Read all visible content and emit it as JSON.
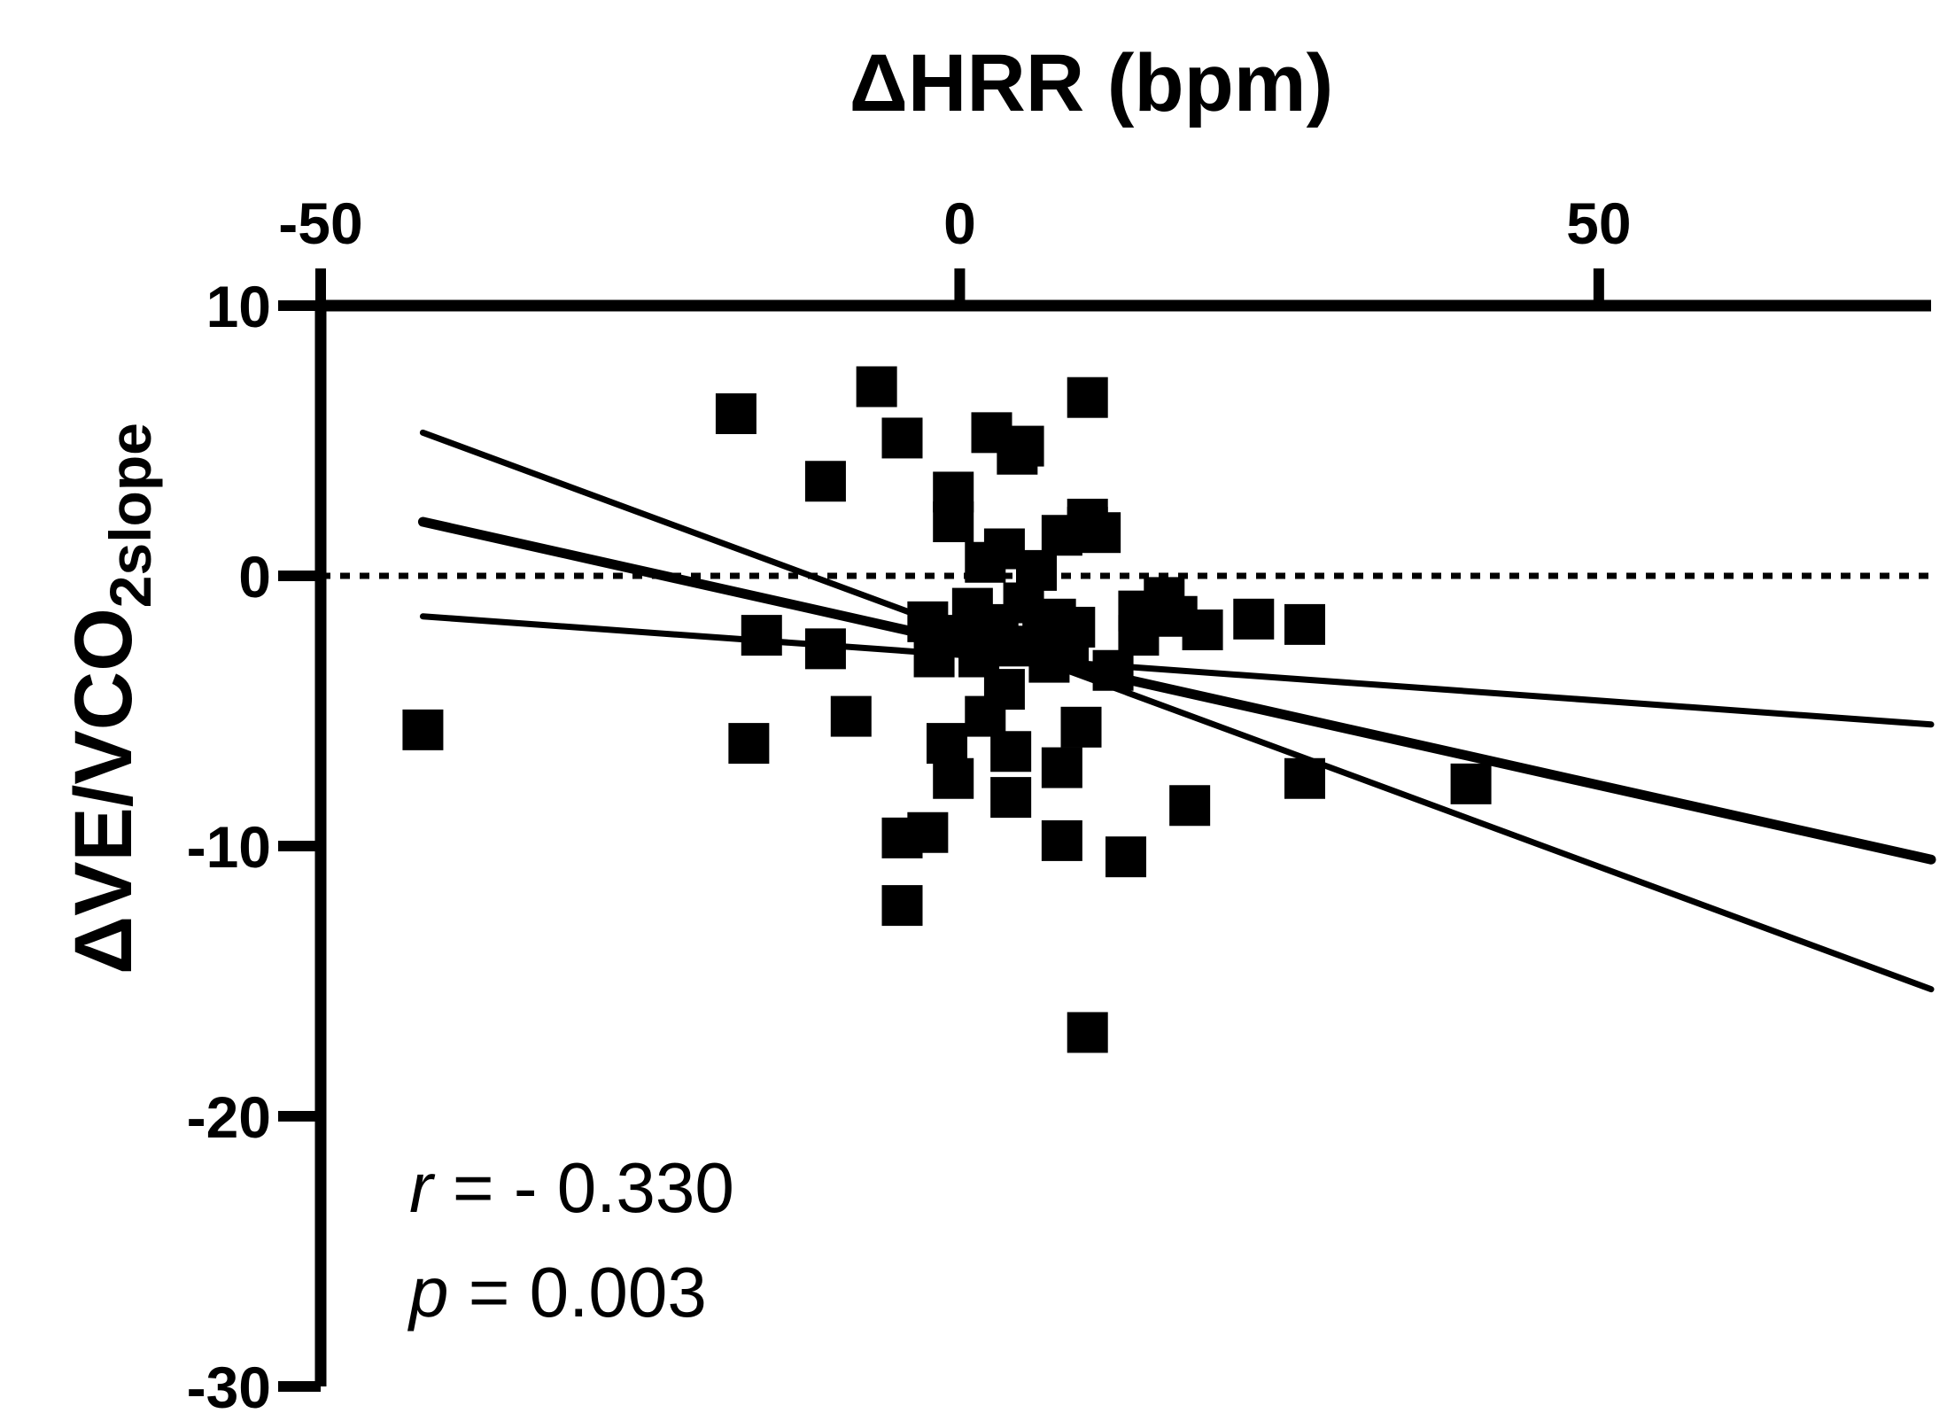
{
  "chart_data": {
    "type": "scatter",
    "title": "",
    "xlabel": "ΔHRR (bpm)",
    "ylabel": {
      "main": "ΔVE/VCO",
      "subscript": "2slope"
    },
    "xlim": [
      -50,
      76
    ],
    "ylim": [
      -30,
      10
    ],
    "x_ticks": [
      -50,
      0,
      50
    ],
    "y_ticks": [
      10,
      0,
      -10,
      -20,
      -30
    ],
    "x_tick_labels": [
      "-50",
      "0",
      "50"
    ],
    "y_tick_labels": [
      "10",
      "0",
      "-10",
      "-20",
      "-30"
    ],
    "x_axis_position": "top",
    "grid": false,
    "marker": "square",
    "color": "#000000",
    "reference_line": {
      "y": 0,
      "style": "dotted"
    },
    "regression": {
      "fit": {
        "x": [
          -42,
          76
        ],
        "y": [
          2.0,
          -10.5
        ]
      },
      "upper": {
        "x": [
          -42,
          76
        ],
        "y": [
          5.3,
          -15.3
        ]
      },
      "lower": {
        "x": [
          -42,
          76
        ],
        "y": [
          -1.5,
          -5.5
        ]
      }
    },
    "annotation": {
      "r_symbol": "r",
      "r_value": "= - 0.330",
      "p_symbol": "p",
      "p_value": "= 0.003"
    },
    "points": [
      {
        "x": -42,
        "y": -5.7
      },
      {
        "x": -17.5,
        "y": 6.0
      },
      {
        "x": -16.5,
        "y": -6.2
      },
      {
        "x": -15.5,
        "y": -2.2
      },
      {
        "x": -10.5,
        "y": 3.5
      },
      {
        "x": -10.5,
        "y": -2.7
      },
      {
        "x": -8.5,
        "y": -5.2
      },
      {
        "x": -6.5,
        "y": 7.0
      },
      {
        "x": -4.5,
        "y": 5.1
      },
      {
        "x": -4.5,
        "y": -9.7
      },
      {
        "x": -4.5,
        "y": -12.2
      },
      {
        "x": -2.5,
        "y": -9.5
      },
      {
        "x": -2.5,
        "y": -1.7
      },
      {
        "x": -2,
        "y": -3.0
      },
      {
        "x": -1,
        "y": -6.2
      },
      {
        "x": -0.5,
        "y": -7.5
      },
      {
        "x": -0.5,
        "y": 3.1
      },
      {
        "x": -0.5,
        "y": 2.0
      },
      {
        "x": 0.5,
        "y": -2.2
      },
      {
        "x": 1,
        "y": -1.2
      },
      {
        "x": 1.5,
        "y": -3.0
      },
      {
        "x": 2,
        "y": 0.5
      },
      {
        "x": 2,
        "y": -5.2
      },
      {
        "x": 2.5,
        "y": 5.3
      },
      {
        "x": 3,
        "y": -1.8
      },
      {
        "x": 3.5,
        "y": 1.0
      },
      {
        "x": 3.5,
        "y": -4.2
      },
      {
        "x": 4,
        "y": -6.5
      },
      {
        "x": 4,
        "y": -8.2
      },
      {
        "x": 4.5,
        "y": 4.5
      },
      {
        "x": 4.5,
        "y": -2.6
      },
      {
        "x": 5,
        "y": 4.8
      },
      {
        "x": 5,
        "y": -1.0
      },
      {
        "x": 6,
        "y": 0.2
      },
      {
        "x": 6.5,
        "y": -2.0
      },
      {
        "x": 7,
        "y": -3.2
      },
      {
        "x": 7.5,
        "y": -1.6
      },
      {
        "x": 8,
        "y": 1.5
      },
      {
        "x": 8.5,
        "y": -2.5
      },
      {
        "x": 8,
        "y": -9.8
      },
      {
        "x": 8,
        "y": -7.1
      },
      {
        "x": 9,
        "y": -1.9
      },
      {
        "x": 9.5,
        "y": -5.6
      },
      {
        "x": 10,
        "y": 1.8
      },
      {
        "x": 10,
        "y": 2.1
      },
      {
        "x": 10,
        "y": 6.6
      },
      {
        "x": 10,
        "y": -16.9
      },
      {
        "x": 11,
        "y": 1.6
      },
      {
        "x": 12,
        "y": -3.5
      },
      {
        "x": 13,
        "y": -10.4
      },
      {
        "x": 14,
        "y": -1.3
      },
      {
        "x": 14,
        "y": -2.2
      },
      {
        "x": 16,
        "y": -0.8
      },
      {
        "x": 17,
        "y": -1.5
      },
      {
        "x": 18,
        "y": -8.5
      },
      {
        "x": 19,
        "y": -2.0
      },
      {
        "x": 23,
        "y": -1.6
      },
      {
        "x": 27,
        "y": -1.8
      },
      {
        "x": 27,
        "y": -7.5
      },
      {
        "x": 40,
        "y": -7.7
      }
    ]
  }
}
